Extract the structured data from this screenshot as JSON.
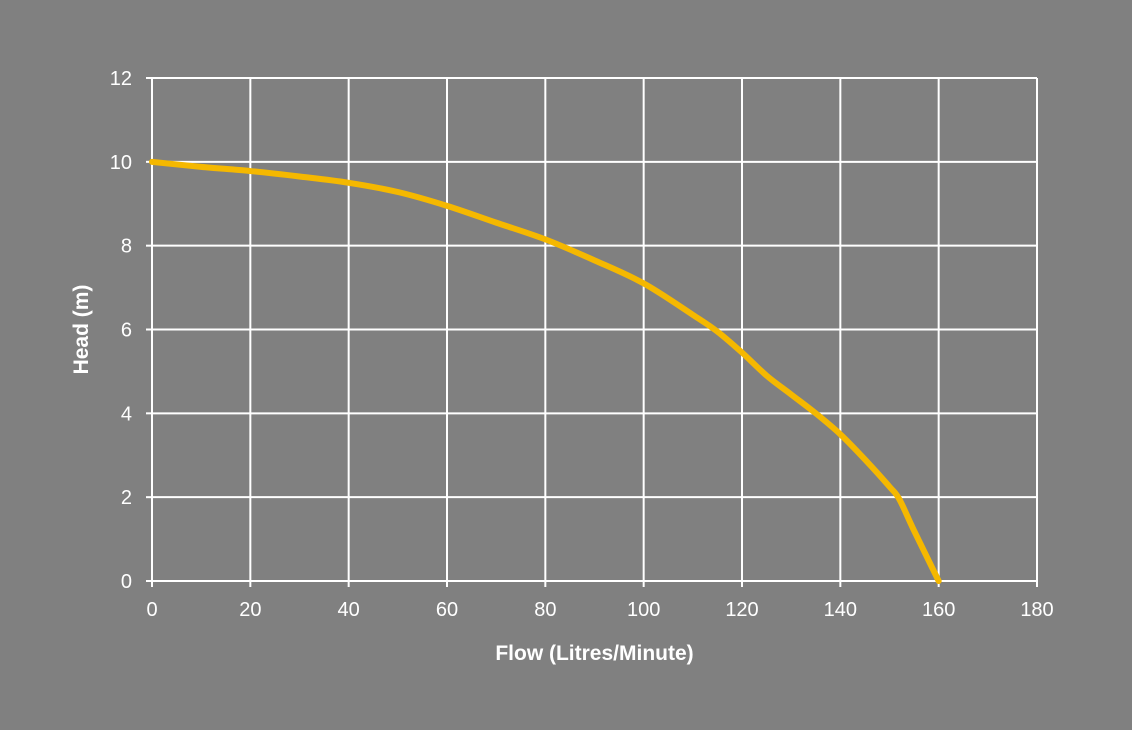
{
  "chart_data": {
    "type": "line",
    "title": "",
    "xlabel": "Flow (Litres/Minute)",
    "ylabel": "Head (m)",
    "xlim": [
      0,
      180
    ],
    "ylim": [
      0,
      12
    ],
    "xticks": [
      0,
      20,
      40,
      60,
      80,
      100,
      120,
      140,
      160,
      180
    ],
    "yticks": [
      0,
      2,
      4,
      6,
      8,
      10,
      12
    ],
    "grid": true,
    "legend": "none",
    "colors": {
      "background": "#808080",
      "grid": "#ffffff",
      "line": "#f5b800",
      "text": "#ffffff"
    },
    "series": [
      {
        "x": [
          0,
          10,
          20,
          30,
          40,
          50,
          60,
          70,
          80,
          90,
          100,
          110,
          115,
          120,
          125,
          130,
          135,
          140,
          145,
          150,
          152,
          155,
          160
        ],
        "y": [
          10,
          9.88,
          9.78,
          9.65,
          9.5,
          9.28,
          8.95,
          8.55,
          8.15,
          7.65,
          7.1,
          6.35,
          5.95,
          5.45,
          4.9,
          4.45,
          4.0,
          3.5,
          2.9,
          2.25,
          1.95,
          1.2,
          0
        ]
      }
    ]
  }
}
